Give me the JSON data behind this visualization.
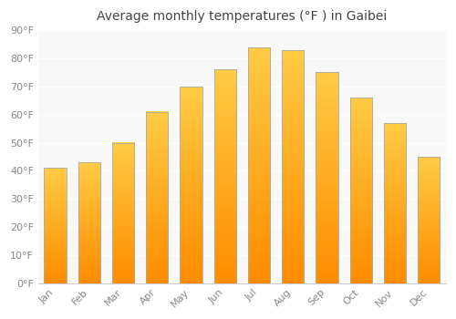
{
  "title": "Average monthly temperatures (°F ) in Gaibei",
  "months": [
    "Jan",
    "Feb",
    "Mar",
    "Apr",
    "May",
    "Jun",
    "Jul",
    "Aug",
    "Sep",
    "Oct",
    "Nov",
    "Dec"
  ],
  "values": [
    41,
    43,
    50,
    61,
    70,
    76,
    84,
    83,
    75,
    66,
    57,
    45
  ],
  "ylim": [
    0,
    90
  ],
  "yticks": [
    0,
    10,
    20,
    30,
    40,
    50,
    60,
    70,
    80,
    90
  ],
  "ytick_labels": [
    "0°F",
    "10°F",
    "20°F",
    "30°F",
    "40°F",
    "50°F",
    "60°F",
    "70°F",
    "80°F",
    "90°F"
  ],
  "background_color": "#ffffff",
  "plot_bg_color": "#f8f8f8",
  "grid_color": "#ffffff",
  "title_fontsize": 10,
  "tick_fontsize": 8,
  "tick_color": "#888888",
  "bar_color_top": "#FFCC44",
  "bar_color_bottom": "#FF8C00",
  "bar_edge_color": "#aaaaaa",
  "bar_width": 0.65
}
